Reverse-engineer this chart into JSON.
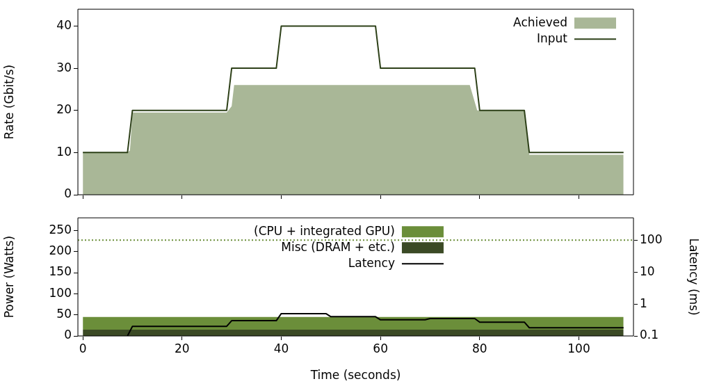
{
  "chart_data": [
    {
      "type": "area",
      "ylabel": "Rate (Gbit/s)",
      "xlim": [
        -1,
        111
      ],
      "xticks": [
        0,
        20,
        40,
        60,
        80,
        100
      ],
      "ylim": [
        0,
        44
      ],
      "yticks": [
        0,
        10,
        20,
        30,
        40
      ],
      "tick_labels": "y",
      "legend": "top right",
      "grid": false,
      "series": [
        {
          "name": "Achieved",
          "type": "area",
          "color": "#a9b797",
          "x": [
            0,
            9,
            9.5,
            10,
            29,
            30,
            30.5,
            78,
            79,
            79.5,
            89,
            90,
            109
          ],
          "values": [
            10,
            10,
            10.5,
            19.5,
            19.5,
            21,
            26,
            26,
            22,
            20,
            20,
            9.5,
            9.5
          ]
        },
        {
          "name": "Input",
          "type": "line",
          "color": "#2d4018",
          "x": [
            0,
            9,
            10,
            29,
            30,
            39,
            40,
            59,
            60,
            79,
            80,
            89,
            90,
            109
          ],
          "values": [
            10,
            10,
            20,
            20,
            30,
            30,
            40,
            40,
            30,
            30,
            20,
            20,
            10,
            10
          ]
        }
      ]
    },
    {
      "type": "area",
      "stacked": true,
      "xlabel": "Time (seconds)",
      "ylabel": "Power (Watts)",
      "y2label": "Latency (ms)",
      "xlim": [
        -1,
        111
      ],
      "xticks": [
        0,
        20,
        40,
        60,
        80,
        100
      ],
      "ylim": [
        0,
        280
      ],
      "yticks": [
        0,
        50,
        100,
        150,
        200,
        250
      ],
      "y2lim": [
        0.1,
        500
      ],
      "y2ticks": [
        0.1,
        1,
        10,
        100
      ],
      "log": "y2",
      "legend": "top",
      "grid": false,
      "series": [
        {
          "name": "Misc (DRAM + etc.)",
          "type": "area",
          "color": "#3b4a25",
          "x": [
            0,
            109
          ],
          "values": [
            15,
            15
          ]
        },
        {
          "name": "(CPU + integrated GPU)",
          "type": "area",
          "color": "#6b8e3a",
          "x": [
            0,
            109
          ],
          "values": [
            30,
            30
          ]
        },
        {
          "type": "line",
          "line_style": "dotted",
          "color": "#6b8e3a",
          "x": [
            -1,
            111
          ],
          "values": [
            227,
            227
          ]
        },
        {
          "name": "Latency",
          "type": "line",
          "axis": "y2",
          "color": "#000000",
          "x": [
            9,
            10,
            29,
            30,
            39,
            40,
            49,
            50,
            59,
            60,
            69,
            70,
            79,
            80,
            89,
            90,
            109
          ],
          "values": [
            0.1,
            0.2,
            0.2,
            0.3,
            0.3,
            0.5,
            0.5,
            0.4,
            0.4,
            0.32,
            0.32,
            0.35,
            0.35,
            0.27,
            0.27,
            0.18,
            0.18
          ]
        }
      ]
    }
  ]
}
